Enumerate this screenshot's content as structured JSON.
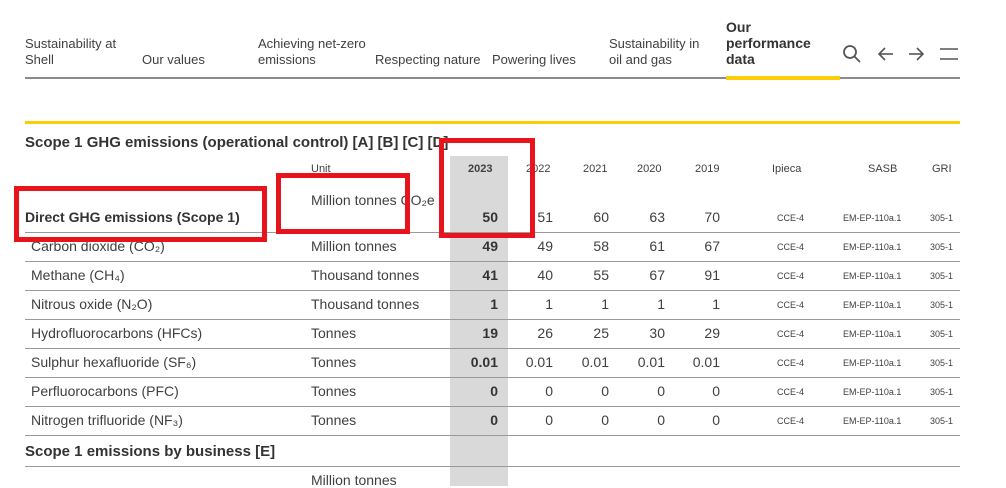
{
  "nav": {
    "items": [
      "Sustainability at\nShell",
      "Our values",
      "Achieving net-zero\nemissions",
      "Respecting nature",
      "Powering lives",
      "Sustainability in\noil and gas"
    ],
    "active": "Our\nperformance\ndata",
    "icons": [
      "search-icon",
      "arrow-left-icon",
      "arrow-right-icon",
      "menu-icon"
    ]
  },
  "section1": {
    "title": "Scope 1 GHG emissions (operational control) [A] [B] [C] [D]"
  },
  "headers": {
    "unit": "Unit",
    "y2023": "2023",
    "y2022": "2022",
    "y2021": "2021",
    "y2020": "2020",
    "y2019": "2019",
    "ipieca": "Ipieca",
    "sasb": "SASB",
    "gri": "GRI"
  },
  "rows": [
    {
      "label": "Direct GHG emissions (Scope 1)",
      "unit": "Million tonnes CO₂e",
      "v2023": "50",
      "v2022": "51",
      "v2021": "60",
      "v2020": "63",
      "v2019": "70",
      "ipieca": "CCE-4",
      "sasb": "EM-EP-110a.1",
      "gri": "305-1"
    },
    {
      "label": "Carbon dioxide (CO₂)",
      "unit": "Million tonnes",
      "v2023": "49",
      "v2022": "49",
      "v2021": "58",
      "v2020": "61",
      "v2019": "67",
      "ipieca": "CCE-4",
      "sasb": "EM-EP-110a.1",
      "gri": "305-1"
    },
    {
      "label": "Methane (CH₄)",
      "unit": "Thousand tonnes",
      "v2023": "41",
      "v2022": "40",
      "v2021": "55",
      "v2020": "67",
      "v2019": "91",
      "ipieca": "CCE-4",
      "sasb": "EM-EP-110a.1",
      "gri": "305-1"
    },
    {
      "label": "Nitrous oxide (N₂O)",
      "unit": "Thousand tonnes",
      "v2023": "1",
      "v2022": "1",
      "v2021": "1",
      "v2020": "1",
      "v2019": "1",
      "ipieca": "CCE-4",
      "sasb": "EM-EP-110a.1",
      "gri": "305-1"
    },
    {
      "label": "Hydrofluorocarbons (HFCs)",
      "unit": "Tonnes",
      "v2023": "19",
      "v2022": "26",
      "v2021": "25",
      "v2020": "30",
      "v2019": "29",
      "ipieca": "CCE-4",
      "sasb": "EM-EP-110a.1",
      "gri": "305-1"
    },
    {
      "label": "Sulphur hexafluoride (SF₆)",
      "unit": "Tonnes",
      "v2023": "0.01",
      "v2022": "0.01",
      "v2021": "0.01",
      "v2020": "0.01",
      "v2019": "0.01",
      "ipieca": "CCE-4",
      "sasb": "EM-EP-110a.1",
      "gri": "305-1"
    },
    {
      "label": "Perfluorocarbons (PFC)",
      "unit": "Tonnes",
      "v2023": "0",
      "v2022": "0",
      "v2021": "0",
      "v2020": "0",
      "v2019": "0",
      "ipieca": "CCE-4",
      "sasb": "EM-EP-110a.1",
      "gri": "305-1"
    },
    {
      "label": "Nitrogen trifluoride (NF₃)",
      "unit": "Tonnes",
      "v2023": "0",
      "v2022": "0",
      "v2021": "0",
      "v2020": "0",
      "v2019": "0",
      "ipieca": "CCE-4",
      "sasb": "EM-EP-110a.1",
      "gri": "305-1"
    }
  ],
  "section2": {
    "title": "Scope 1 emissions by business [E]",
    "unit": "Million tonnes"
  },
  "colors": {
    "accent": "#fbce07",
    "highlight": "#e8141b",
    "column": "#d9d9d9"
  }
}
